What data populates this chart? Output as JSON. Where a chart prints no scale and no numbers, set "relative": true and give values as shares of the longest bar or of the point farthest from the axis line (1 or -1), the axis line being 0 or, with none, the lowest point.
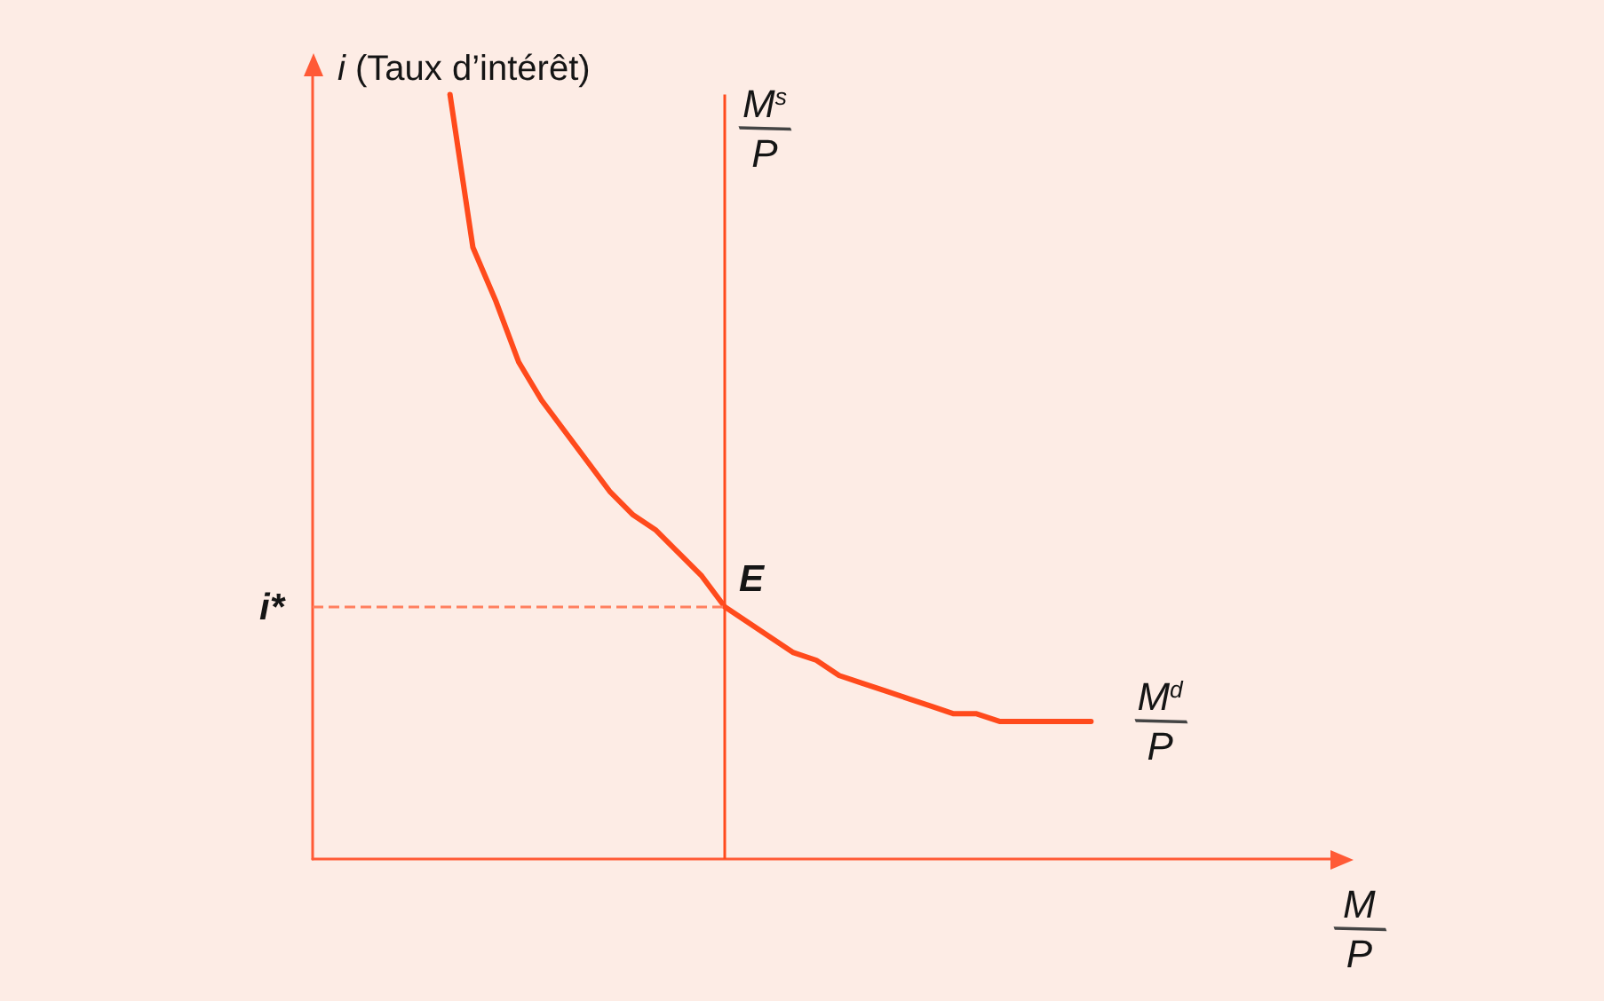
{
  "chart_data": {
    "type": "line",
    "relative": true,
    "ylabel": "i (Taux d’intérêt)",
    "xlabel": "M/P",
    "marker": "none",
    "categories": [
      null,
      null,
      null,
      null,
      null,
      null,
      null,
      null,
      null,
      null,
      null,
      null,
      null,
      null,
      null,
      null,
      null,
      null,
      null,
      null,
      null,
      null,
      null,
      null,
      null,
      null,
      null,
      null,
      null,
      null,
      null,
      null,
      null,
      null,
      null,
      null,
      null,
      null,
      null,
      null,
      null,
      null,
      null,
      null,
      null,
      null
    ],
    "series": [
      {
        "name": "M$^{d}$/P",
        "color": "#ff4a1c",
        "values": [
          null,
          null,
          null,
          null,
          null,
          null,
          1,
          0.8,
          0.73,
          0.65,
          0.6,
          0.56,
          0.52,
          0.48,
          0.45,
          0.43,
          0.4,
          0.37,
          0.33,
          0.31,
          0.29,
          0.27,
          0.26,
          0.24,
          0.23,
          0.22,
          0.21,
          0.2,
          0.19,
          0.19,
          0.18,
          0.18,
          0.18,
          0.18,
          0.18,
          null,
          null,
          null,
          null,
          null,
          null,
          null,
          null,
          null,
          null,
          null
        ]
      }
    ],
    "ref_lines": [
      {
        "axis": "y",
        "value": 0.33,
        "label": "i*",
        "color": "#ff7f5f",
        "line_style": "dashed"
      }
    ],
    "annotations": [
      "E",
      "M$^{s}$/P"
    ]
  }
}
